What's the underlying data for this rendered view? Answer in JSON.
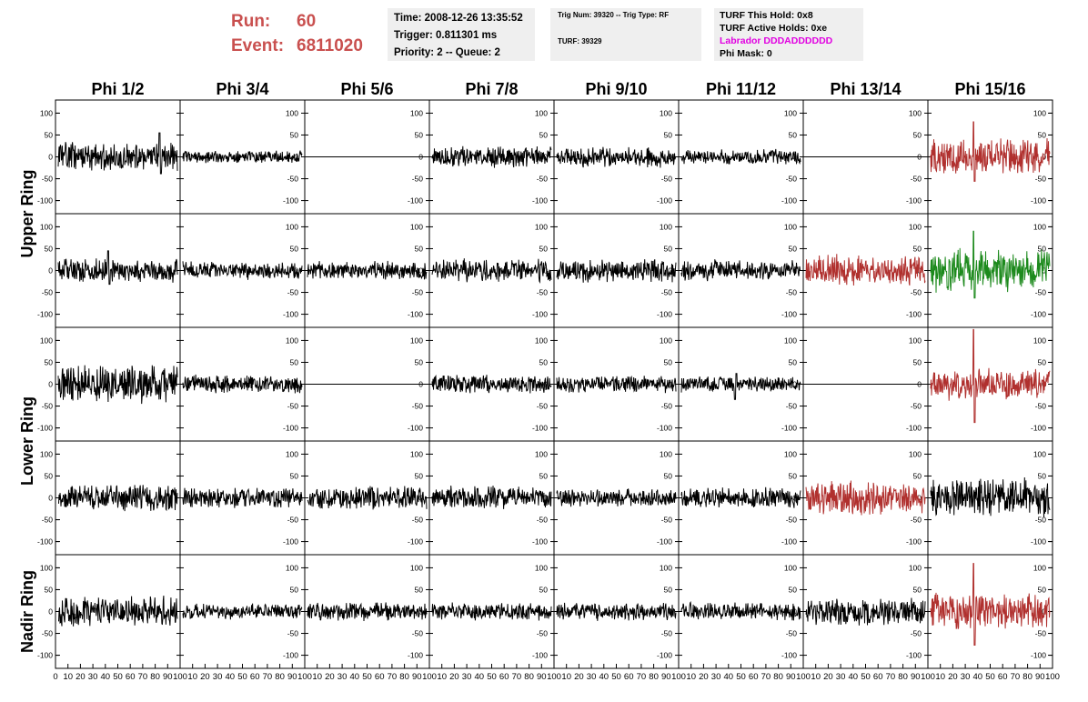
{
  "header": {
    "run_label": "Run:",
    "run_value": "60",
    "event_label": "Event:",
    "event_value": "6811020",
    "info1": [
      "Time: 2008-12-26 13:35:52",
      "Trigger: 0.811301 ms",
      "Priority: 2 -- Queue: 2"
    ],
    "info2": [
      "Trig Num: 39320 -- Trig Type: RF",
      "TURF: 39329"
    ],
    "info3": [
      "TURF This Hold: 0x8",
      "TURF Active Holds: 0xe",
      "Labrador DDDADDDDDD",
      "Phi Mask: 0"
    ]
  },
  "colors": {
    "black": "#000000",
    "red": "#b0302e",
    "green": "#1d8a1d",
    "run": "#c9504f",
    "labrador": "#e100e1"
  },
  "chart_data": {
    "type": "line",
    "columns": [
      "Phi 1/2",
      "Phi 3/4",
      "Phi 5/6",
      "Phi 7/8",
      "Phi 9/10",
      "Phi 11/12",
      "Phi 13/14",
      "Phi 15/16"
    ],
    "ring_labels": [
      {
        "label": "Upper Ring",
        "rows": [
          0,
          1
        ]
      },
      {
        "label": "Lower Ring",
        "rows": [
          2,
          3
        ]
      },
      {
        "label": "Nadir Ring",
        "rows": [
          4
        ]
      }
    ],
    "ylim": [
      -130,
      130
    ],
    "xlim": [
      0,
      100
    ],
    "y_ticks": [
      -100,
      -50,
      0,
      50,
      100
    ],
    "x_ticks": [
      0,
      10,
      20,
      30,
      40,
      50,
      60,
      70,
      80,
      90,
      100
    ],
    "grid": false,
    "panels": [
      [
        {
          "amp": 22,
          "color": "black",
          "seed": 11,
          "spike": [
            85,
            55
          ]
        },
        {
          "amp": 10,
          "color": "black",
          "seed": 12
        },
        {
          "amp": 0,
          "color": "black",
          "seed": 13
        },
        {
          "amp": 16,
          "color": "black",
          "seed": 14
        },
        {
          "amp": 16,
          "color": "black",
          "seed": 15
        },
        {
          "amp": 12,
          "color": "black",
          "seed": 16
        },
        {
          "amp": 0,
          "color": "black",
          "seed": 17
        },
        {
          "amp": 28,
          "color": "red",
          "seed": 18,
          "spike": [
            36,
            80
          ]
        }
      ],
      [
        {
          "amp": 20,
          "color": "black",
          "seed": 21,
          "spike": [
            42,
            45
          ]
        },
        {
          "amp": 14,
          "color": "black",
          "seed": 22
        },
        {
          "amp": 14,
          "color": "black",
          "seed": 23
        },
        {
          "amp": 18,
          "color": "black",
          "seed": 24
        },
        {
          "amp": 18,
          "color": "black",
          "seed": 25
        },
        {
          "amp": 16,
          "color": "black",
          "seed": 26
        },
        {
          "amp": 24,
          "color": "red",
          "seed": 27
        },
        {
          "amp": 34,
          "color": "green",
          "seed": 28,
          "spike": [
            36,
            90
          ]
        }
      ],
      [
        {
          "amp": 30,
          "color": "black",
          "seed": 31
        },
        {
          "amp": 14,
          "color": "black",
          "seed": 32
        },
        {
          "amp": 0,
          "color": "black",
          "seed": 33
        },
        {
          "amp": 14,
          "color": "black",
          "seed": 34
        },
        {
          "amp": 14,
          "color": "black",
          "seed": 35
        },
        {
          "amp": 12,
          "color": "black",
          "seed": 36,
          "spike": [
            45,
            -35
          ]
        },
        {
          "amp": 0,
          "color": "black",
          "seed": 37
        },
        {
          "amp": 24,
          "color": "red",
          "seed": 38,
          "spike": [
            36,
            125
          ]
        }
      ],
      [
        {
          "amp": 20,
          "color": "black",
          "seed": 41
        },
        {
          "amp": 16,
          "color": "black",
          "seed": 42
        },
        {
          "amp": 18,
          "color": "black",
          "seed": 43
        },
        {
          "amp": 18,
          "color": "black",
          "seed": 44
        },
        {
          "amp": 14,
          "color": "black",
          "seed": 45
        },
        {
          "amp": 16,
          "color": "black",
          "seed": 46
        },
        {
          "amp": 26,
          "color": "red",
          "seed": 47
        },
        {
          "amp": 30,
          "color": "black",
          "seed": 48
        }
      ],
      [
        {
          "amp": 24,
          "color": "black",
          "seed": 51
        },
        {
          "amp": 12,
          "color": "black",
          "seed": 52
        },
        {
          "amp": 14,
          "color": "black",
          "seed": 53
        },
        {
          "amp": 14,
          "color": "black",
          "seed": 54
        },
        {
          "amp": 14,
          "color": "black",
          "seed": 55
        },
        {
          "amp": 14,
          "color": "black",
          "seed": 56
        },
        {
          "amp": 22,
          "color": "black",
          "seed": 57
        },
        {
          "amp": 28,
          "color": "red",
          "seed": 58,
          "spike": [
            36,
            110
          ]
        }
      ]
    ]
  }
}
